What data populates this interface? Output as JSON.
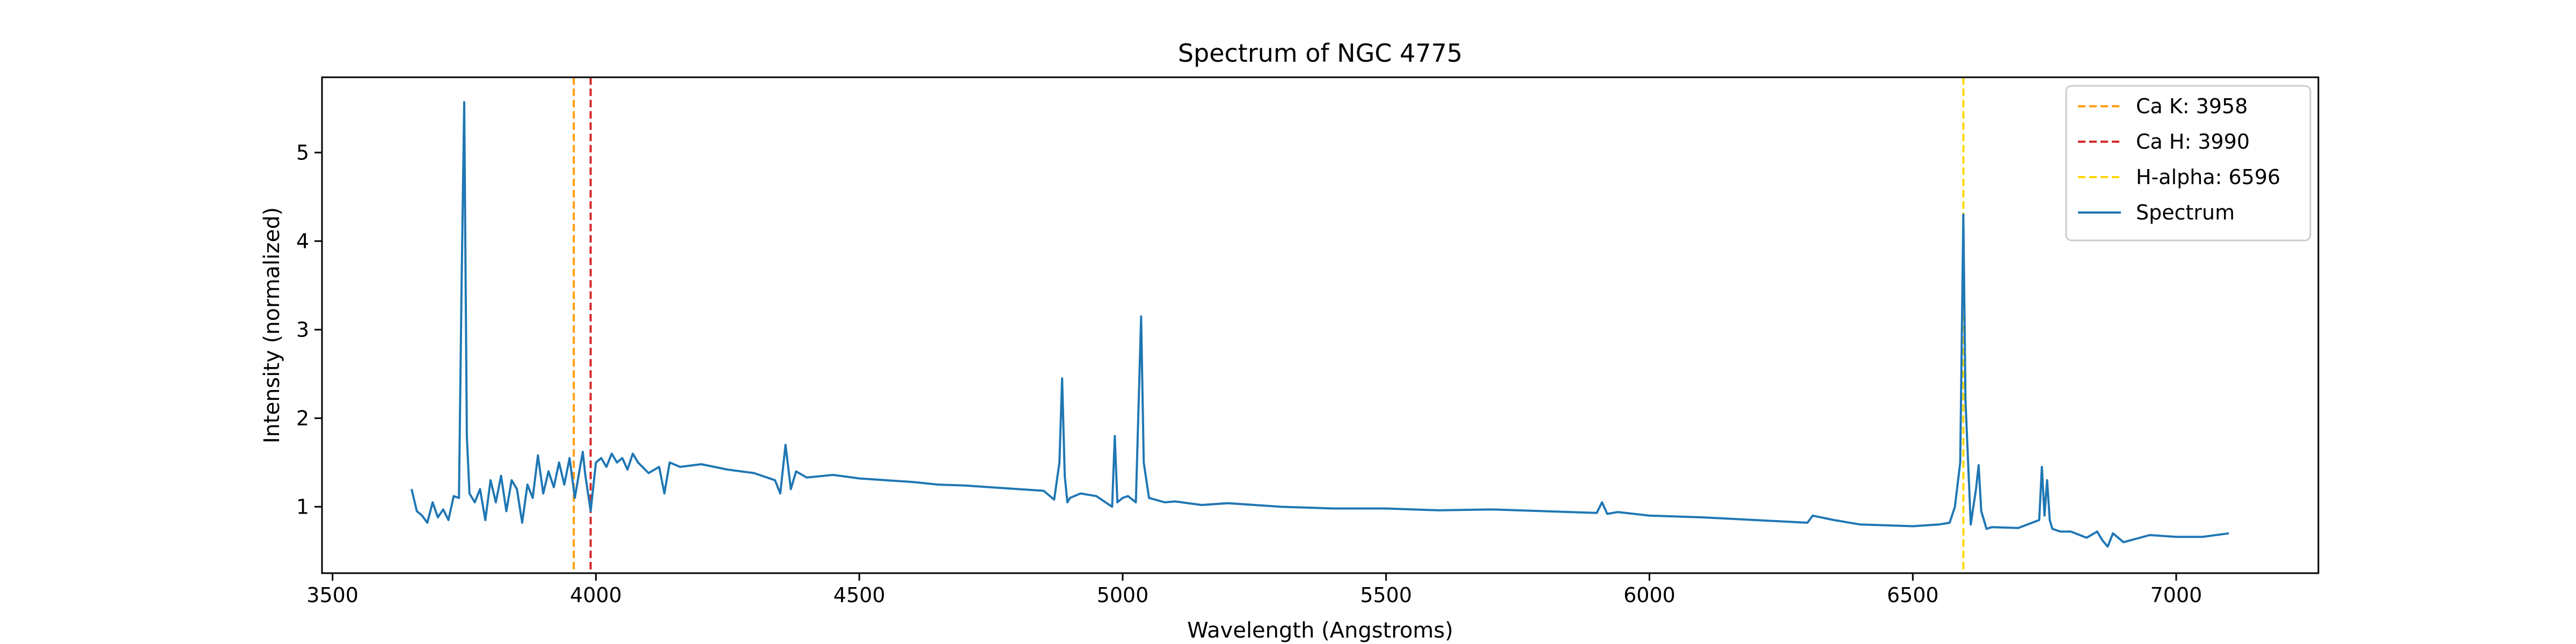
{
  "chart_data": {
    "type": "line",
    "title": "Spectrum of NGC 4775",
    "xlabel": "Wavelength (Angstroms)",
    "ylabel": "Intensity (normalized)",
    "xlim": [
      3480,
      7270
    ],
    "ylim": [
      0.25,
      5.85
    ],
    "xticks": [
      3500,
      4000,
      4500,
      5000,
      5500,
      6000,
      6500,
      7000
    ],
    "yticks": [
      1,
      2,
      3,
      4,
      5
    ],
    "grid": false,
    "legend_position": "top-right",
    "reference_lines": [
      {
        "label": "Ca K: 3958",
        "x": 3958,
        "color": "#ff9f0e",
        "style": "dashed"
      },
      {
        "label": "Ca H: 3990",
        "x": 3990,
        "color": "#d62728",
        "style": "dashed"
      },
      {
        "label": "H-alpha: 6596",
        "x": 6596,
        "color": "#ffd700",
        "style": "dashed"
      }
    ],
    "series": [
      {
        "name": "Spectrum",
        "color": "#1f77b4",
        "x": [
          3650,
          3660,
          3670,
          3680,
          3690,
          3700,
          3710,
          3720,
          3730,
          3740,
          3745,
          3750,
          3755,
          3760,
          3770,
          3780,
          3790,
          3800,
          3810,
          3820,
          3830,
          3840,
          3850,
          3860,
          3870,
          3880,
          3890,
          3900,
          3910,
          3920,
          3930,
          3940,
          3950,
          3960,
          3970,
          3975,
          3980,
          3990,
          4000,
          4010,
          4020,
          4030,
          4040,
          4050,
          4060,
          4070,
          4080,
          4100,
          4120,
          4130,
          4140,
          4160,
          4200,
          4250,
          4300,
          4340,
          4350,
          4360,
          4370,
          4380,
          4400,
          4450,
          4500,
          4550,
          4600,
          4650,
          4700,
          4750,
          4800,
          4850,
          4870,
          4880,
          4885,
          4890,
          4895,
          4900,
          4920,
          4950,
          4980,
          4985,
          4990,
          5000,
          5010,
          5025,
          5030,
          5035,
          5040,
          5050,
          5080,
          5100,
          5150,
          5200,
          5300,
          5400,
          5500,
          5600,
          5700,
          5800,
          5900,
          5910,
          5920,
          5940,
          6000,
          6100,
          6200,
          6300,
          6310,
          6350,
          6400,
          6500,
          6550,
          6570,
          6580,
          6590,
          6596,
          6600,
          6610,
          6620,
          6625,
          6630,
          6640,
          6650,
          6700,
          6740,
          6745,
          6750,
          6755,
          6760,
          6765,
          6770,
          6780,
          6800,
          6830,
          6850,
          6860,
          6870,
          6880,
          6900,
          6950,
          7000,
          7050,
          7100
        ],
        "y": [
          1.2,
          0.95,
          0.9,
          0.82,
          1.05,
          0.88,
          0.97,
          0.85,
          1.12,
          1.1,
          3.5,
          5.57,
          1.8,
          1.15,
          1.05,
          1.2,
          0.85,
          1.3,
          1.05,
          1.35,
          0.95,
          1.3,
          1.2,
          0.82,
          1.25,
          1.1,
          1.58,
          1.15,
          1.4,
          1.22,
          1.5,
          1.25,
          1.55,
          1.1,
          1.45,
          1.62,
          1.35,
          0.95,
          1.5,
          1.55,
          1.45,
          1.6,
          1.5,
          1.55,
          1.42,
          1.6,
          1.5,
          1.38,
          1.45,
          1.15,
          1.5,
          1.45,
          1.48,
          1.42,
          1.38,
          1.3,
          1.15,
          1.7,
          1.2,
          1.4,
          1.33,
          1.36,
          1.32,
          1.3,
          1.28,
          1.25,
          1.24,
          1.22,
          1.2,
          1.18,
          1.08,
          1.5,
          2.45,
          1.35,
          1.05,
          1.1,
          1.15,
          1.12,
          1.0,
          1.8,
          1.05,
          1.1,
          1.12,
          1.05,
          2.1,
          3.15,
          1.5,
          1.1,
          1.05,
          1.06,
          1.02,
          1.04,
          1.0,
          0.98,
          0.98,
          0.96,
          0.97,
          0.95,
          0.93,
          1.05,
          0.92,
          0.94,
          0.9,
          0.88,
          0.85,
          0.82,
          0.9,
          0.85,
          0.8,
          0.78,
          0.8,
          0.82,
          1.0,
          1.5,
          4.3,
          2.2,
          0.8,
          1.2,
          1.47,
          0.95,
          0.75,
          0.77,
          0.76,
          0.85,
          1.45,
          0.9,
          1.3,
          0.85,
          0.75,
          0.74,
          0.72,
          0.72,
          0.65,
          0.72,
          0.62,
          0.55,
          0.7,
          0.6,
          0.68,
          0.66,
          0.66,
          0.7
        ]
      }
    ]
  }
}
